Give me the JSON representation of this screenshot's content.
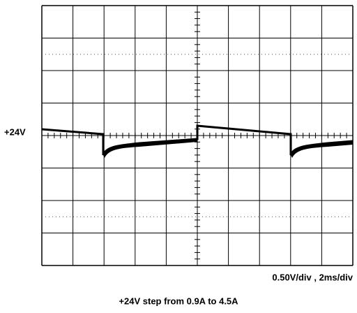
{
  "screen": {
    "level_marker": "+24V",
    "scale": "0.50V/div  ,  2ms/div",
    "caption": "+24V step from 0.9A to 4.5A"
  }
}
